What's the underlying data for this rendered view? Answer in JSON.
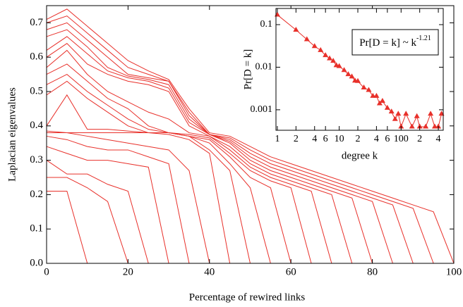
{
  "chart_data": [
    {
      "type": "line",
      "xlabel": "Percentage of rewired links",
      "ylabel": "Laplacian eigenvalues",
      "color": "#e8302a",
      "x": [
        0,
        5,
        10,
        15,
        20,
        25,
        30,
        35,
        40,
        45,
        50,
        55,
        60,
        65,
        70,
        75,
        80,
        85,
        90,
        95,
        100
      ],
      "xlim": [
        0,
        100
      ],
      "ylim": [
        0,
        0.75
      ],
      "xticks": [
        0,
        20,
        40,
        60,
        80,
        100
      ],
      "yticks": [
        {
          "value": 0,
          "label": "0.0"
        },
        0.1,
        0.2,
        0.3,
        0.4,
        0.5,
        0.6,
        0.7
      ],
      "series": [
        {
          "values": [
            0.71,
            0.74,
            0.69,
            0.64,
            0.59,
            0.56,
            0.535,
            0.45,
            0.38,
            0.37,
            0.34,
            0.31,
            0.29,
            0.27,
            0.25,
            0.23,
            0.21,
            0.19,
            0.17,
            0.15,
            0
          ]
        },
        {
          "values": [
            0.7,
            0.72,
            0.67,
            0.62,
            0.57,
            0.55,
            0.53,
            0.44,
            0.375,
            0.365,
            0.33,
            0.3,
            0.28,
            0.26,
            0.24,
            0.22,
            0.2,
            0.18,
            0.16,
            0,
            null
          ]
        },
        {
          "values": [
            0.68,
            0.7,
            0.65,
            0.6,
            0.55,
            0.54,
            0.53,
            0.43,
            0.375,
            0.36,
            0.32,
            0.29,
            0.27,
            0.25,
            0.23,
            0.21,
            0.19,
            0.17,
            0,
            null,
            null
          ]
        },
        {
          "values": [
            0.66,
            0.68,
            0.63,
            0.57,
            0.545,
            0.535,
            0.52,
            0.42,
            0.375,
            0.355,
            0.31,
            0.28,
            0.26,
            0.24,
            0.22,
            0.2,
            0.18,
            0,
            null,
            null,
            null
          ]
        },
        {
          "values": [
            0.62,
            0.66,
            0.61,
            0.56,
            0.54,
            0.53,
            0.51,
            0.41,
            0.375,
            0.35,
            0.3,
            0.27,
            0.25,
            0.23,
            0.21,
            0.19,
            0,
            null,
            null,
            null,
            null
          ]
        },
        {
          "values": [
            0.6,
            0.64,
            0.58,
            0.55,
            0.53,
            0.52,
            0.5,
            0.4,
            0.37,
            0.34,
            0.29,
            0.26,
            0.24,
            0.22,
            0.2,
            0,
            null,
            null,
            null,
            null,
            null
          ]
        },
        {
          "values": [
            0.57,
            0.62,
            0.55,
            0.5,
            0.47,
            0.44,
            0.42,
            0.38,
            0.37,
            0.33,
            0.28,
            0.25,
            0.23,
            0.21,
            0,
            null,
            null,
            null,
            null,
            null,
            null
          ]
        },
        {
          "values": [
            0.55,
            0.58,
            0.53,
            0.48,
            0.45,
            0.4,
            0.38,
            0.375,
            0.365,
            0.32,
            0.27,
            0.24,
            0.22,
            0,
            null,
            null,
            null,
            null,
            null,
            null,
            null
          ]
        },
        {
          "values": [
            0.52,
            0.55,
            0.5,
            0.46,
            0.42,
            0.39,
            0.38,
            0.37,
            0.36,
            0.31,
            0.25,
            0.22,
            0,
            null,
            null,
            null,
            null,
            null,
            null,
            null,
            null
          ]
        },
        {
          "values": [
            0.49,
            0.53,
            0.48,
            0.44,
            0.4,
            0.38,
            0.38,
            0.37,
            0.35,
            0.29,
            0.22,
            0,
            null,
            null,
            null,
            null,
            null,
            null,
            null,
            null,
            null
          ]
        },
        {
          "values": [
            0.4,
            0.49,
            0.39,
            0.39,
            0.385,
            0.38,
            0.38,
            0.37,
            0.33,
            0.27,
            0,
            null,
            null,
            null,
            null,
            null,
            null,
            null,
            null,
            null,
            null
          ]
        },
        {
          "values": [
            0.385,
            0.38,
            0.38,
            0.38,
            0.38,
            0.38,
            0.375,
            0.36,
            0.32,
            0,
            null,
            null,
            null,
            null,
            null,
            null,
            null,
            null,
            null,
            null,
            null
          ]
        },
        {
          "values": [
            0.38,
            0.38,
            0.37,
            0.36,
            0.35,
            0.34,
            0.33,
            0.27,
            0,
            null,
            null,
            null,
            null,
            null,
            null,
            null,
            null,
            null,
            null,
            null,
            null
          ]
        },
        {
          "values": [
            0.37,
            0.36,
            0.34,
            0.33,
            0.33,
            0.31,
            0.29,
            0,
            null,
            null,
            null,
            null,
            null,
            null,
            null,
            null,
            null,
            null,
            null,
            null,
            null
          ]
        },
        {
          "values": [
            0.34,
            0.32,
            0.3,
            0.3,
            0.29,
            0.28,
            0,
            null,
            null,
            null,
            null,
            null,
            null,
            null,
            null,
            null,
            null,
            null,
            null,
            null,
            null
          ]
        },
        {
          "values": [
            0.3,
            0.26,
            0.26,
            0.23,
            0.21,
            0,
            null,
            null,
            null,
            null,
            null,
            null,
            null,
            null,
            null,
            null,
            null,
            null,
            null,
            null,
            null
          ]
        },
        {
          "values": [
            0.25,
            0.25,
            0.22,
            0.18,
            0,
            null,
            null,
            null,
            null,
            null,
            null,
            null,
            null,
            null,
            null,
            null,
            null,
            null,
            null,
            null,
            null
          ]
        },
        {
          "values": [
            0.21,
            0.21,
            0,
            null,
            null,
            null,
            null,
            null,
            null,
            null,
            null,
            null,
            null,
            null,
            null,
            null,
            null,
            null,
            null,
            null,
            null
          ]
        }
      ]
    },
    {
      "type": "line",
      "marker": "triangle",
      "xscale": "log",
      "yscale": "log",
      "color": "#e8302a",
      "xlabel": "degree k",
      "ylabel": "Pr[D = k]",
      "annotation": "Pr[D = k] ~ k",
      "annotation_exponent": "-1.21",
      "x": [
        1,
        2,
        3,
        4,
        5,
        6,
        7,
        8,
        9,
        10,
        12,
        14,
        16,
        18,
        20,
        25,
        30,
        35,
        40,
        45,
        50,
        60,
        70,
        80,
        90,
        100,
        120,
        150,
        180,
        200,
        250,
        300,
        350,
        400,
        450
      ],
      "xlim": [
        0.95,
        480
      ],
      "ylim": [
        0.00033,
        0.24
      ],
      "xticks": [
        1,
        2,
        4,
        6,
        10,
        {
          "value": 20,
          "label": "2"
        },
        {
          "value": 40,
          "label": "4"
        },
        {
          "value": 60,
          "label": "6"
        },
        100,
        {
          "value": 200,
          "label": "2"
        },
        {
          "value": 400,
          "label": "4"
        }
      ],
      "yticks": [
        0.001,
        0.01,
        0.1
      ],
      "series": [
        {
          "values": [
            0.17,
            0.075,
            0.045,
            0.031,
            0.025,
            0.019,
            0.016,
            0.014,
            0.011,
            0.0105,
            0.0085,
            0.0068,
            0.006,
            0.0048,
            0.0047,
            0.0033,
            0.0029,
            0.0021,
            0.0021,
            0.0014,
            0.0016,
            0.0011,
            0.0009,
            0.0006,
            0.0008,
            0.0004,
            0.0008,
            0.0004,
            0.0007,
            0.0004,
            0.0004,
            0.0008,
            0.0004,
            0.0004,
            0.0008
          ]
        }
      ]
    }
  ]
}
